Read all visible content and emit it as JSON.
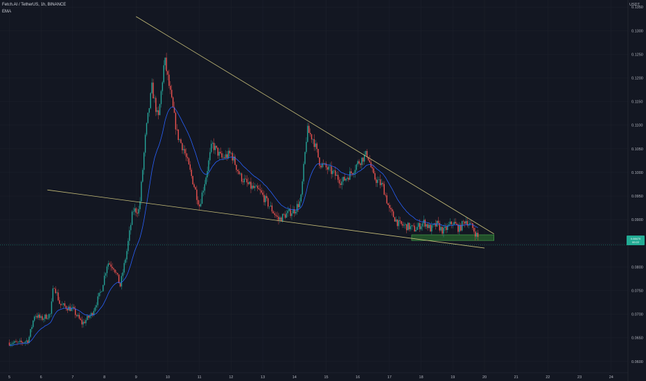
{
  "header": {
    "symbol_line": "Fetch.AI / TetherUS, 1h, BINANCE",
    "indicator": "EMA"
  },
  "price_axis": {
    "quote": "USDT",
    "ticks": [
      "0.1350",
      "0.1300",
      "0.1250",
      "0.1200",
      "0.1150",
      "0.1100",
      "0.1050",
      "0.1000",
      "0.0950",
      "0.0900",
      "0.0850",
      "0.0800",
      "0.0750",
      "0.0700",
      "0.0650",
      "0.0600"
    ],
    "current_price": "0.08470",
    "current_sub": "00:22"
  },
  "time_axis": {
    "ticks": [
      "5",
      "6",
      "7",
      "8",
      "9",
      "10",
      "11",
      "12",
      "13",
      "14",
      "15",
      "16",
      "17",
      "18",
      "19",
      "20",
      "21",
      "22",
      "23",
      "24"
    ]
  },
  "colors": {
    "background": "#131722",
    "up": "#26a69a",
    "down": "#ef5350",
    "ema": "#2962ff",
    "trendline": "#c9c07a",
    "zone": "#2e7d32"
  },
  "chart_data": {
    "type": "candlestick",
    "title": "Fetch.AI / TetherUS, 1h, BINANCE",
    "x_range": [
      "5",
      "24"
    ],
    "ylim": [
      0.0585,
      0.1365
    ],
    "price_path": [
      {
        "x": 5.0,
        "y": 0.064
      },
      {
        "x": 5.3,
        "y": 0.0638
      },
      {
        "x": 5.6,
        "y": 0.0645
      },
      {
        "x": 5.8,
        "y": 0.07
      },
      {
        "x": 6.0,
        "y": 0.069
      },
      {
        "x": 6.3,
        "y": 0.07
      },
      {
        "x": 6.4,
        "y": 0.0765
      },
      {
        "x": 6.6,
        "y": 0.072
      },
      {
        "x": 7.0,
        "y": 0.071
      },
      {
        "x": 7.3,
        "y": 0.068
      },
      {
        "x": 7.6,
        "y": 0.07
      },
      {
        "x": 7.9,
        "y": 0.075
      },
      {
        "x": 8.1,
        "y": 0.081
      },
      {
        "x": 8.3,
        "y": 0.08
      },
      {
        "x": 8.5,
        "y": 0.076
      },
      {
        "x": 8.7,
        "y": 0.083
      },
      {
        "x": 8.9,
        "y": 0.092
      },
      {
        "x": 9.1,
        "y": 0.092
      },
      {
        "x": 9.3,
        "y": 0.108
      },
      {
        "x": 9.5,
        "y": 0.118
      },
      {
        "x": 9.7,
        "y": 0.111
      },
      {
        "x": 9.9,
        "y": 0.124
      },
      {
        "x": 10.1,
        "y": 0.116
      },
      {
        "x": 10.3,
        "y": 0.108
      },
      {
        "x": 10.5,
        "y": 0.105
      },
      {
        "x": 10.8,
        "y": 0.098
      },
      {
        "x": 11.0,
        "y": 0.093
      },
      {
        "x": 11.2,
        "y": 0.099
      },
      {
        "x": 11.4,
        "y": 0.106
      },
      {
        "x": 11.7,
        "y": 0.103
      },
      {
        "x": 12.0,
        "y": 0.104
      },
      {
        "x": 12.3,
        "y": 0.099
      },
      {
        "x": 12.6,
        "y": 0.097
      },
      {
        "x": 12.9,
        "y": 0.096
      },
      {
        "x": 13.2,
        "y": 0.093
      },
      {
        "x": 13.5,
        "y": 0.09
      },
      {
        "x": 13.7,
        "y": 0.091
      },
      {
        "x": 14.0,
        "y": 0.092
      },
      {
        "x": 14.2,
        "y": 0.094
      },
      {
        "x": 14.4,
        "y": 0.109
      },
      {
        "x": 14.6,
        "y": 0.107
      },
      {
        "x": 14.8,
        "y": 0.102
      },
      {
        "x": 15.0,
        "y": 0.101
      },
      {
        "x": 15.2,
        "y": 0.1
      },
      {
        "x": 15.5,
        "y": 0.098
      },
      {
        "x": 15.8,
        "y": 0.1
      },
      {
        "x": 16.0,
        "y": 0.102
      },
      {
        "x": 16.3,
        "y": 0.104
      },
      {
        "x": 16.5,
        "y": 0.099
      },
      {
        "x": 16.8,
        "y": 0.097
      },
      {
        "x": 17.0,
        "y": 0.092
      },
      {
        "x": 17.3,
        "y": 0.089
      },
      {
        "x": 17.6,
        "y": 0.0885
      },
      {
        "x": 17.8,
        "y": 0.088
      },
      {
        "x": 18.1,
        "y": 0.0895
      },
      {
        "x": 18.3,
        "y": 0.088
      },
      {
        "x": 18.5,
        "y": 0.089
      },
      {
        "x": 18.7,
        "y": 0.0875
      },
      {
        "x": 19.0,
        "y": 0.0895
      },
      {
        "x": 19.2,
        "y": 0.088
      },
      {
        "x": 19.4,
        "y": 0.09
      },
      {
        "x": 19.6,
        "y": 0.0885
      },
      {
        "x": 19.8,
        "y": 0.0862
      }
    ],
    "trendlines": [
      {
        "name": "upper",
        "from": {
          "x": 9.0,
          "y": 0.133
        },
        "to": {
          "x": 20.3,
          "y": 0.087
        }
      },
      {
        "name": "lower",
        "from": {
          "x": 6.2,
          "y": 0.0963
        },
        "to": {
          "x": 20.0,
          "y": 0.084
        }
      }
    ],
    "zone": {
      "x0": 17.7,
      "x1": 20.3,
      "y0": 0.0856,
      "y1": 0.0868
    }
  }
}
